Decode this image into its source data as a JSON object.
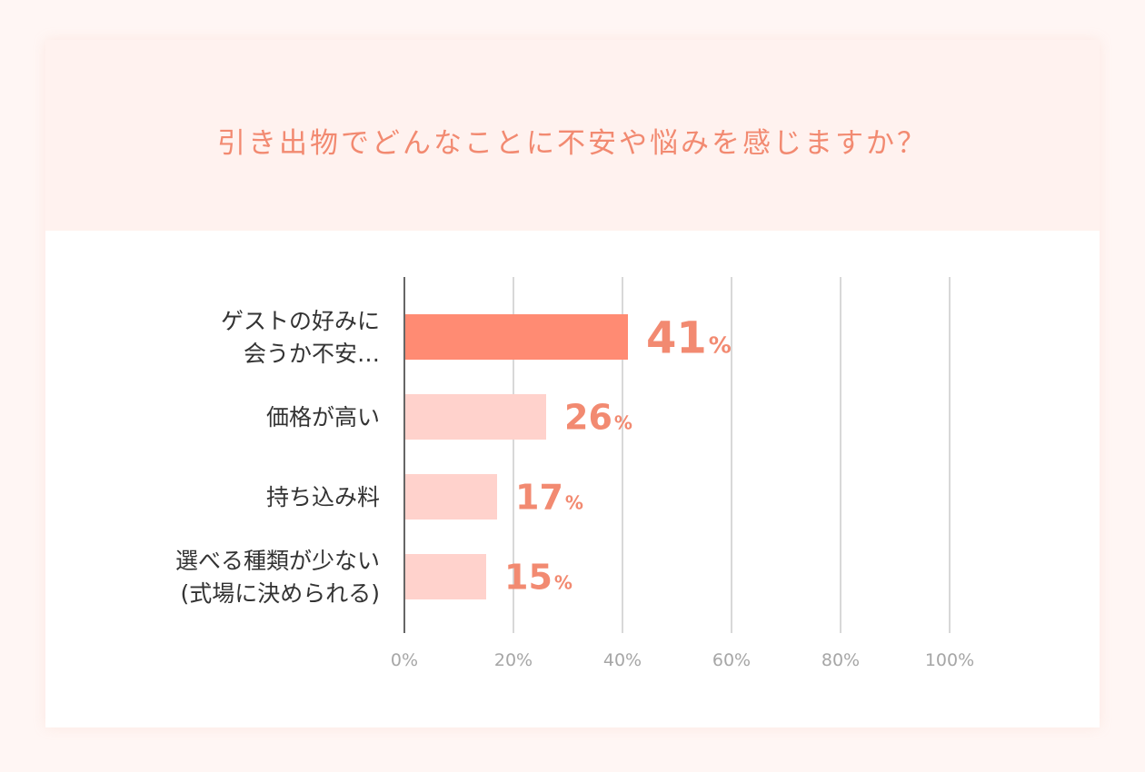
{
  "colors": {
    "highlight_bar": "#ff8b73",
    "bar": "#ffd2cc",
    "value_label": "#f28a71",
    "header_bg": "#fff2ef",
    "grid": "#cccccc"
  },
  "chart_data": {
    "type": "bar",
    "orientation": "horizontal",
    "title": "引き出物でどんなことに不安や悩みを感じますか？",
    "categories": [
      [
        "ゲストの好みに",
        "会うか不安…"
      ],
      [
        "価格が高い"
      ],
      [
        "持ち込み料"
      ],
      [
        "選べる種類が少ない",
        "(式場に決められる)"
      ]
    ],
    "values": [
      41,
      26,
      17,
      15
    ],
    "value_suffix": "%",
    "highlight_index": 0,
    "xlim": [
      0,
      100
    ],
    "xticks": [
      "0%",
      "20%",
      "40%",
      "60%",
      "80%",
      "100%"
    ],
    "grid": true
  }
}
